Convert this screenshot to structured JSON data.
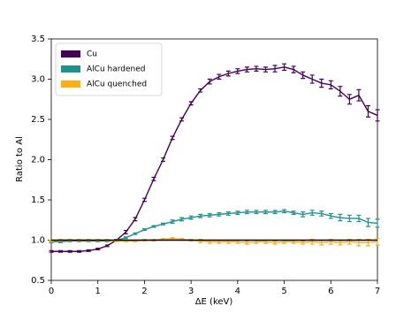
{
  "chart_data": {
    "type": "line",
    "xlabel": "ΔE (keV)",
    "ylabel": "Ratio to Al",
    "x": [
      0,
      0.2,
      0.4,
      0.6,
      0.8,
      1.0,
      1.2,
      1.4,
      1.6,
      1.8,
      2.0,
      2.2,
      2.4,
      2.6,
      2.8,
      3.0,
      3.2,
      3.4,
      3.6,
      3.8,
      4.0,
      4.2,
      4.4,
      4.6,
      4.8,
      5.0,
      5.2,
      5.4,
      5.6,
      5.8,
      6.0,
      6.2,
      6.4,
      6.6,
      6.8,
      7.0
    ],
    "series": [
      {
        "name": "Cu",
        "color": "#440154",
        "values": [
          0.86,
          0.86,
          0.86,
          0.86,
          0.87,
          0.89,
          0.93,
          1.0,
          1.1,
          1.26,
          1.5,
          1.76,
          2.0,
          2.27,
          2.5,
          2.7,
          2.86,
          2.97,
          3.03,
          3.07,
          3.1,
          3.12,
          3.13,
          3.12,
          3.13,
          3.15,
          3.12,
          3.05,
          3.0,
          2.95,
          2.93,
          2.85,
          2.75,
          2.8,
          2.6,
          2.55
        ],
        "errors": [
          0.01,
          0.01,
          0.01,
          0.01,
          0.01,
          0.01,
          0.01,
          0.01,
          0.02,
          0.02,
          0.02,
          0.02,
          0.02,
          0.02,
          0.02,
          0.02,
          0.02,
          0.03,
          0.03,
          0.03,
          0.03,
          0.03,
          0.03,
          0.03,
          0.04,
          0.04,
          0.04,
          0.04,
          0.05,
          0.05,
          0.05,
          0.06,
          0.06,
          0.07,
          0.07,
          0.07
        ]
      },
      {
        "name": "AlCu hardened",
        "color": "#21918c",
        "values": [
          0.98,
          0.98,
          0.99,
          0.99,
          0.99,
          0.99,
          0.99,
          1.0,
          1.03,
          1.08,
          1.13,
          1.17,
          1.2,
          1.23,
          1.26,
          1.28,
          1.3,
          1.31,
          1.32,
          1.33,
          1.34,
          1.35,
          1.35,
          1.35,
          1.35,
          1.36,
          1.34,
          1.32,
          1.34,
          1.33,
          1.3,
          1.28,
          1.27,
          1.27,
          1.22,
          1.21
        ],
        "errors": [
          0.01,
          0.01,
          0.01,
          0.01,
          0.01,
          0.01,
          0.01,
          0.01,
          0.01,
          0.01,
          0.01,
          0.01,
          0.01,
          0.02,
          0.02,
          0.02,
          0.02,
          0.02,
          0.02,
          0.02,
          0.02,
          0.02,
          0.02,
          0.02,
          0.02,
          0.02,
          0.02,
          0.03,
          0.03,
          0.03,
          0.03,
          0.04,
          0.04,
          0.04,
          0.05,
          0.05
        ]
      },
      {
        "name": "AlCu quenched",
        "color": "#fdae14",
        "values": [
          0.99,
          1.0,
          1.0,
          1.0,
          1.0,
          1.0,
          1.0,
          0.99,
          0.99,
          0.99,
          1.0,
          1.0,
          1.01,
          1.02,
          1.01,
          1.0,
          0.99,
          0.98,
          0.98,
          0.98,
          0.98,
          0.97,
          0.98,
          0.98,
          0.97,
          0.98,
          0.98,
          0.97,
          0.98,
          0.97,
          0.98,
          0.97,
          0.98,
          0.97,
          0.97,
          0.98
        ],
        "errors": [
          0.01,
          0.01,
          0.01,
          0.01,
          0.01,
          0.01,
          0.01,
          0.01,
          0.01,
          0.01,
          0.01,
          0.01,
          0.01,
          0.01,
          0.01,
          0.01,
          0.02,
          0.02,
          0.02,
          0.02,
          0.02,
          0.02,
          0.02,
          0.02,
          0.02,
          0.02,
          0.02,
          0.02,
          0.03,
          0.03,
          0.03,
          0.03,
          0.03,
          0.04,
          0.04,
          0.04
        ]
      }
    ],
    "hline": 1,
    "hline_color": "#000000",
    "xlim": [
      0,
      7
    ],
    "xticks": [
      0,
      1,
      2,
      3,
      4,
      5,
      6,
      7
    ],
    "ylim": [
      0.5,
      3.5
    ],
    "yticks": [
      0.5,
      {
        "value": 1,
        "label": "1.0"
      },
      1.5,
      {
        "value": 2,
        "label": "2.0"
      },
      2.5,
      {
        "value": 3,
        "label": "3.0"
      },
      3.5
    ],
    "grid": false,
    "legend": "upper left"
  }
}
